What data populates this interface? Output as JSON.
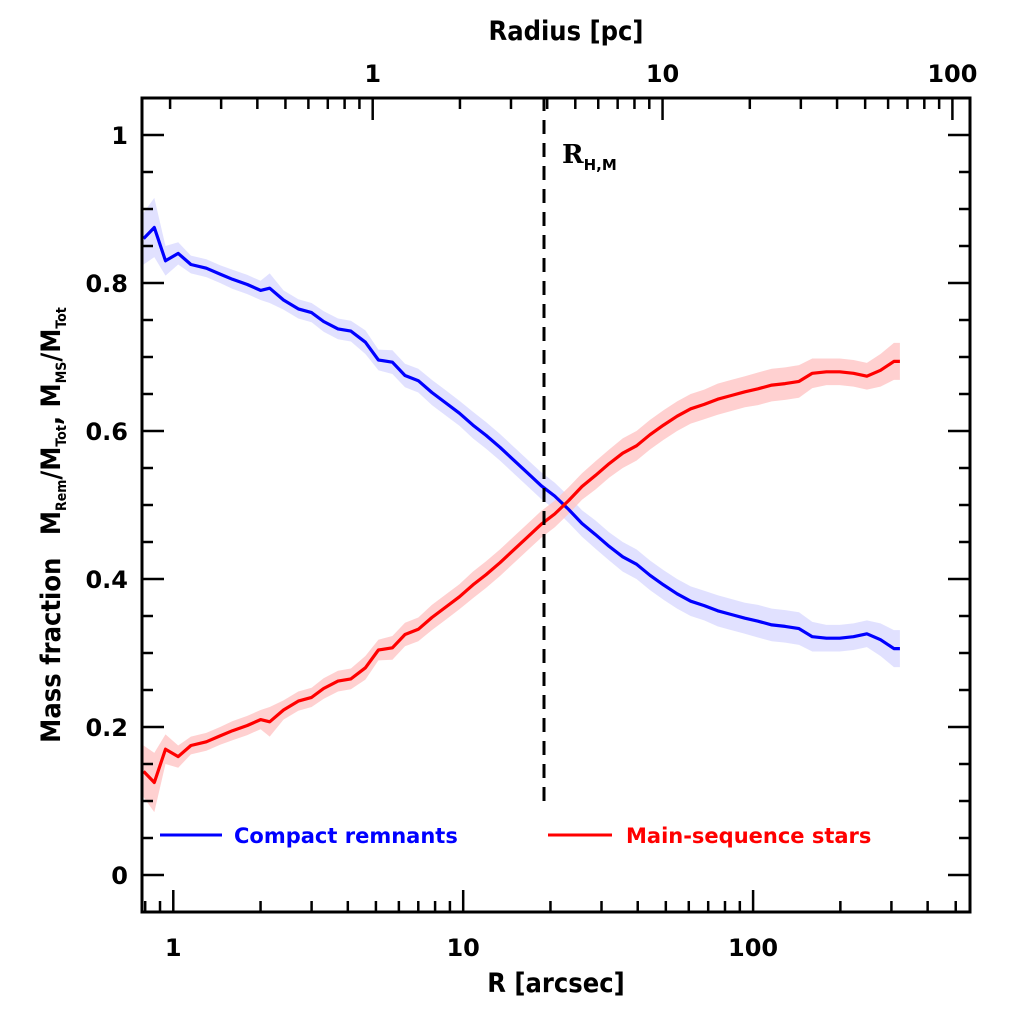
{
  "chart_data": {
    "type": "line",
    "title": "",
    "xlabel": "R [arcsec]",
    "x2label": "Radius [pc]",
    "ylabel_main": "Mass fraction",
    "ylabel_detail": {
      "m1": "M",
      "m1_sub": "Rem",
      "slash1": "/M",
      "t1_sub": "Tot",
      "sep": ", ",
      "m2": "M",
      "m2_sub": "MS",
      "slash2": "/M",
      "t2_sub": "Tot"
    },
    "xscale": "log",
    "xlim": [
      0.78,
      560
    ],
    "x2lim_pc": [
      0.16,
      115
    ],
    "ylim": [
      -0.05,
      1.05
    ],
    "x_ticks": [
      1,
      10,
      100
    ],
    "x_tick_labels": [
      "1",
      "10",
      "100"
    ],
    "x2_ticks": [
      1,
      10,
      100
    ],
    "x2_tick_labels": [
      "1",
      "10",
      "100"
    ],
    "y_ticks": [
      0,
      0.2,
      0.4,
      0.6,
      0.8,
      1
    ],
    "y_tick_labels": [
      "0",
      "0.2",
      "0.4",
      "0.6",
      "0.8",
      "1"
    ],
    "grid": false,
    "legend": "bottom",
    "annotations": [
      {
        "type": "vline",
        "x": 19,
        "style": "dashed",
        "label": "R",
        "label_sub": "H,M",
        "y_from": 0.1,
        "y_to": 1.05
      }
    ],
    "x": [
      0.79,
      0.86,
      0.94,
      1.04,
      1.15,
      1.3,
      1.45,
      1.6,
      1.8,
      2.0,
      2.15,
      2.4,
      2.7,
      3.0,
      3.3,
      3.7,
      4.1,
      4.6,
      5.1,
      5.7,
      6.3,
      7.0,
      7.8,
      8.7,
      9.7,
      10.8,
      12.0,
      13.4,
      15.0,
      16.7,
      18.6,
      20.7,
      23.1,
      25.7,
      28.6,
      31.9,
      35.5,
      39.6,
      44.1,
      49.1,
      54.7,
      60.9,
      67.8,
      75.5,
      84.1,
      93.7,
      104,
      116,
      129,
      144,
      160,
      179,
      199,
      222,
      247,
      275,
      306,
      321
    ],
    "series": [
      {
        "name": "Compact remnants",
        "color": "#0000ff",
        "band_color": "#dcdcff",
        "values": [
          0.86,
          0.875,
          0.83,
          0.84,
          0.825,
          0.82,
          0.812,
          0.805,
          0.798,
          0.79,
          0.793,
          0.777,
          0.765,
          0.76,
          0.748,
          0.738,
          0.735,
          0.72,
          0.696,
          0.693,
          0.675,
          0.668,
          0.652,
          0.638,
          0.624,
          0.608,
          0.594,
          0.578,
          0.56,
          0.543,
          0.526,
          0.512,
          0.494,
          0.475,
          0.46,
          0.444,
          0.43,
          0.42,
          0.405,
          0.392,
          0.38,
          0.37,
          0.364,
          0.357,
          0.352,
          0.347,
          0.343,
          0.338,
          0.336,
          0.333,
          0.322,
          0.32,
          0.32,
          0.322,
          0.326,
          0.318,
          0.306,
          0.306
        ],
        "band_halfwidth": [
          0.035,
          0.04,
          0.02,
          0.015,
          0.012,
          0.012,
          0.012,
          0.013,
          0.013,
          0.013,
          0.02,
          0.013,
          0.013,
          0.013,
          0.014,
          0.014,
          0.014,
          0.016,
          0.014,
          0.016,
          0.016,
          0.016,
          0.017,
          0.017,
          0.017,
          0.018,
          0.018,
          0.018,
          0.018,
          0.018,
          0.018,
          0.018,
          0.018,
          0.018,
          0.019,
          0.019,
          0.02,
          0.02,
          0.02,
          0.02,
          0.02,
          0.02,
          0.02,
          0.021,
          0.021,
          0.021,
          0.022,
          0.022,
          0.022,
          0.022,
          0.02,
          0.018,
          0.018,
          0.018,
          0.018,
          0.022,
          0.025,
          0.025
        ]
      },
      {
        "name": "Main-sequence stars",
        "color": "#ff0000",
        "band_color": "#ffc8c8",
        "values": [
          0.14,
          0.125,
          0.17,
          0.16,
          0.175,
          0.18,
          0.188,
          0.195,
          0.202,
          0.21,
          0.207,
          0.223,
          0.235,
          0.24,
          0.252,
          0.262,
          0.265,
          0.28,
          0.304,
          0.307,
          0.325,
          0.332,
          0.348,
          0.362,
          0.376,
          0.392,
          0.406,
          0.422,
          0.44,
          0.457,
          0.474,
          0.488,
          0.506,
          0.525,
          0.54,
          0.556,
          0.57,
          0.58,
          0.595,
          0.608,
          0.62,
          0.63,
          0.636,
          0.643,
          0.648,
          0.653,
          0.657,
          0.662,
          0.664,
          0.667,
          0.678,
          0.68,
          0.68,
          0.678,
          0.674,
          0.682,
          0.694,
          0.694
        ]
      }
    ]
  }
}
